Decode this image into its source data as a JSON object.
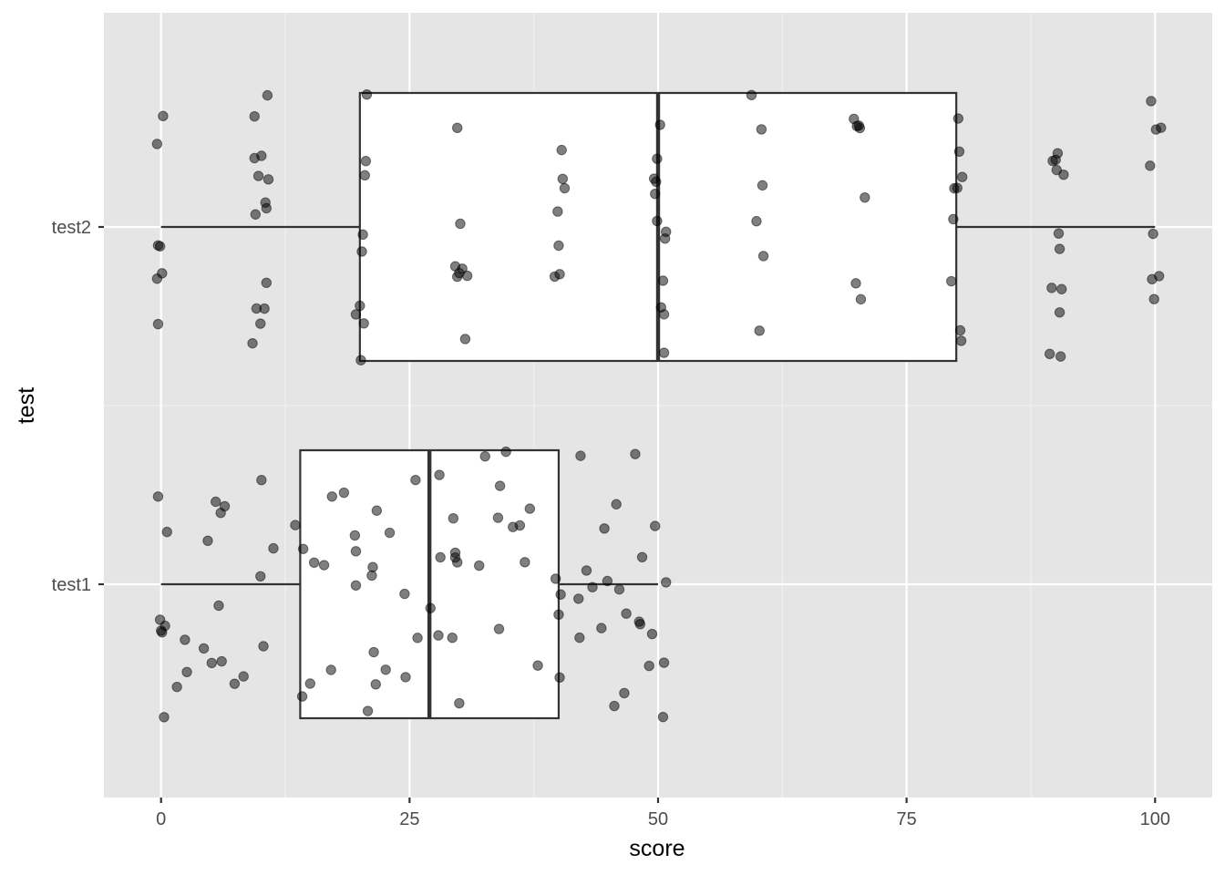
{
  "chart_data": {
    "type": "boxplot",
    "orientation": "horizontal",
    "title": "",
    "xlabel": "score",
    "ylabel": "test",
    "xlim": [
      -5.75,
      105.75
    ],
    "x_ticks": [
      0,
      25,
      50,
      75,
      100
    ],
    "x_tick_labels": [
      "0",
      "25",
      "50",
      "75",
      "100"
    ],
    "categories": [
      "test1",
      "test2"
    ],
    "grid": true,
    "legend": "none",
    "colors": {
      "panel_background": "#e5e5e5",
      "grid_major": "#ffffff",
      "grid_minor": "#f2f2f2",
      "box_fill": "#ffffff",
      "box_line": "#333333",
      "point": "#000000",
      "point_opacity": 0.5
    },
    "boxes": [
      {
        "category": "test1",
        "min": 0,
        "q1": 14,
        "median": 27,
        "q3": 40,
        "max": 50
      },
      {
        "category": "test2",
        "min": 0,
        "q1": 20,
        "median": 50,
        "q3": 80,
        "max": 100
      }
    ],
    "points": [
      {
        "category": "test1",
        "values": [
          0.4,
          0.6,
          -0.1,
          0.3,
          0.1,
          0.0,
          -0.3,
          1.6,
          2.4,
          2.6,
          4.3,
          4.7,
          5.1,
          5.5,
          5.8,
          6.0,
          6.4,
          6.1,
          7.4,
          8.3,
          10.1,
          10.0,
          10.3,
          11.3,
          13.5,
          14.3,
          14.2,
          15.0,
          15.4,
          16.4,
          17.1,
          17.2,
          18.4,
          19.5,
          19.6,
          19.6,
          20.8,
          21.2,
          21.4,
          21.7,
          21.3,
          21.6,
          22.6,
          23.0,
          24.5,
          24.6,
          25.8,
          25.6,
          27.1,
          28.0,
          27.9,
          28.1,
          29.3,
          29.4,
          29.6,
          29.6,
          29.8,
          30.0,
          32.0,
          32.6,
          33.9,
          34.1,
          34.0,
          34.7,
          35.4,
          36.1,
          36.6,
          37.1,
          37.9,
          39.7,
          40.2,
          40.1,
          40.0,
          42.1,
          42.2,
          42.0,
          42.8,
          43.4,
          44.3,
          44.6,
          44.9,
          45.6,
          45.8,
          46.1,
          46.6,
          46.8,
          47.7,
          48.1,
          48.2,
          48.4,
          49.1,
          49.4,
          49.7,
          50.6,
          50.5,
          50.8
        ]
      },
      {
        "category": "test2",
        "values": [
          -0.4,
          -0.3,
          0.1,
          -0.3,
          -0.1,
          -0.4,
          0.2,
          9.2,
          9.4,
          9.4,
          9.5,
          9.6,
          9.8,
          10.0,
          10.1,
          10.4,
          10.5,
          10.6,
          10.7,
          10.8,
          10.6,
          19.6,
          20.0,
          20.1,
          20.2,
          20.4,
          20.5,
          20.7,
          20.6,
          20.3,
          29.6,
          29.8,
          30.0,
          30.1,
          30.3,
          30.6,
          30.8,
          29.8,
          40.0,
          40.3,
          40.1,
          39.9,
          40.4,
          39.6,
          40.6,
          49.7,
          49.9,
          49.8,
          50.2,
          50.7,
          50.6,
          50.5,
          50.8,
          50.6,
          50.3,
          49.6,
          49.9,
          59.9,
          60.4,
          60.2,
          60.5,
          59.4,
          60.6,
          70.8,
          69.7,
          70.3,
          70.2,
          70.0,
          70.4,
          69.9,
          79.5,
          80.1,
          80.3,
          79.7,
          80.5,
          80.6,
          80.2,
          80.4,
          79.8,
          90.5,
          90.2,
          90.0,
          90.4,
          89.4,
          89.7,
          90.6,
          90.8,
          90.4,
          90.1,
          90.3,
          89.6,
          99.8,
          99.7,
          100.4,
          99.5,
          100.1,
          99.9,
          99.6,
          100.6
        ]
      }
    ]
  }
}
